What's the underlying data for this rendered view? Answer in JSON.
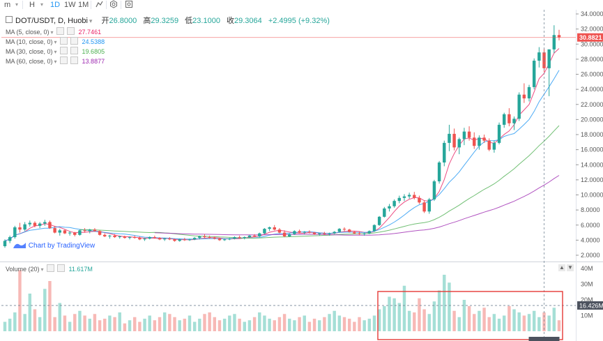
{
  "toolbar": {
    "items": [
      "m",
      "H",
      "1D",
      "1W",
      "1M"
    ],
    "active": "1D",
    "icons": [
      "compare-icon",
      "indicator-icon",
      "settings-icon",
      "screenshot-icon"
    ]
  },
  "legend": {
    "symbol": "DOT/USDT, D, Huobi",
    "open_label": "开",
    "open": "26.8000",
    "high_label": "高",
    "high": "29.3259",
    "low_label": "低",
    "low": "23.1000",
    "close_label": "收",
    "close": "29.3064",
    "change": "+2.4995 (+9.32%)",
    "ma": [
      {
        "label": "MA (5, close, 0)",
        "value": "27.7461",
        "color": "#e91e63"
      },
      {
        "label": "MA (10, close, 0)",
        "value": "24.5388",
        "color": "#2196f3"
      },
      {
        "label": "MA (30, close, 0)",
        "value": "19.6805",
        "color": "#4caf50"
      },
      {
        "label": "MA (60, close, 0)",
        "value": "13.8877",
        "color": "#9c27b0"
      }
    ],
    "volume_label": "Volume (20)",
    "volume_value": "11.617M"
  },
  "watermark": "Chart by TradingView",
  "price_axis": {
    "ticks": [
      "2.0000",
      "4.0000",
      "6.0000",
      "8.0000",
      "10.0000",
      "12.0000",
      "14.0000",
      "16.0000",
      "18.0000",
      "20.0000",
      "22.0000",
      "24.0000",
      "26.0000",
      "28.0000",
      "30.0000",
      "32.0000",
      "34.0000"
    ],
    "last_price": "30.8821"
  },
  "volume_axis": {
    "ticks": [
      "10M",
      "20M",
      "30M",
      "40M"
    ],
    "crosshair_value": "16.426M"
  },
  "colors": {
    "up": "#26a69a",
    "down": "#ef5350",
    "up_vol": "#a5dfd6",
    "down_vol": "#f7b9b6",
    "highlight": "#e53935"
  },
  "chart_data": {
    "type": "candlestick",
    "price_range": [
      2,
      34
    ],
    "volume_range_millions": [
      0,
      40
    ],
    "candles": [
      [
        3.2,
        4.1,
        3.0,
        3.9
      ],
      [
        3.9,
        4.6,
        3.6,
        4.4
      ],
      [
        4.4,
        5.9,
        4.2,
        5.7
      ],
      [
        5.7,
        6.3,
        5.0,
        5.4
      ],
      [
        5.4,
        6.4,
        5.2,
        6.1
      ],
      [
        6.1,
        6.6,
        5.8,
        6.3
      ],
      [
        6.3,
        6.5,
        5.7,
        5.9
      ],
      [
        5.9,
        6.4,
        5.6,
        6.2
      ],
      [
        6.2,
        6.7,
        5.9,
        6.4
      ],
      [
        6.4,
        6.6,
        5.5,
        5.6
      ],
      [
        5.6,
        5.9,
        4.9,
        5.0
      ],
      [
        5.0,
        5.5,
        4.6,
        5.3
      ],
      [
        5.3,
        5.4,
        4.8,
        4.9
      ],
      [
        4.9,
        5.2,
        4.6,
        5.0
      ],
      [
        5.0,
        5.1,
        4.5,
        4.7
      ],
      [
        4.7,
        5.4,
        4.6,
        5.3
      ],
      [
        5.3,
        5.6,
        5.0,
        5.2
      ],
      [
        5.2,
        5.5,
        4.9,
        5.4
      ],
      [
        5.4,
        5.6,
        5.1,
        5.2
      ],
      [
        5.2,
        5.3,
        4.6,
        4.7
      ],
      [
        4.7,
        4.9,
        4.4,
        4.5
      ],
      [
        4.5,
        4.7,
        4.2,
        4.6
      ],
      [
        4.6,
        4.8,
        4.3,
        4.4
      ],
      [
        4.4,
        4.6,
        4.2,
        4.5
      ],
      [
        4.5,
        4.6,
        4.2,
        4.3
      ],
      [
        4.3,
        4.5,
        4.1,
        4.4
      ],
      [
        4.4,
        4.6,
        4.2,
        4.3
      ],
      [
        4.3,
        4.5,
        4.0,
        4.1
      ],
      [
        4.1,
        4.3,
        3.9,
        4.2
      ],
      [
        4.2,
        4.5,
        4.1,
        4.4
      ],
      [
        4.4,
        4.6,
        4.2,
        4.3
      ],
      [
        4.3,
        4.4,
        4.0,
        4.1
      ],
      [
        4.1,
        4.3,
        3.9,
        4.2
      ],
      [
        4.2,
        4.4,
        4.0,
        4.1
      ],
      [
        4.1,
        4.2,
        3.8,
        3.9
      ],
      [
        3.9,
        4.2,
        3.8,
        4.1
      ],
      [
        4.1,
        4.3,
        3.9,
        4.0
      ],
      [
        4.0,
        4.2,
        3.9,
        4.1
      ],
      [
        4.1,
        4.4,
        4.0,
        4.3
      ],
      [
        4.3,
        4.6,
        4.1,
        4.5
      ],
      [
        4.5,
        4.8,
        4.3,
        4.4
      ],
      [
        4.4,
        4.6,
        4.2,
        4.3
      ],
      [
        4.3,
        4.5,
        4.1,
        4.2
      ],
      [
        4.2,
        4.3,
        3.9,
        4.0
      ],
      [
        4.0,
        4.2,
        3.9,
        4.1
      ],
      [
        4.1,
        4.3,
        4.0,
        4.2
      ],
      [
        4.2,
        4.5,
        4.1,
        4.4
      ],
      [
        4.4,
        4.6,
        4.2,
        4.3
      ],
      [
        4.3,
        4.5,
        4.1,
        4.4
      ],
      [
        4.4,
        4.7,
        4.3,
        4.6
      ],
      [
        4.6,
        4.8,
        4.4,
        4.5
      ],
      [
        4.5,
        5.0,
        4.4,
        4.9
      ],
      [
        4.9,
        5.6,
        4.8,
        5.5
      ],
      [
        5.5,
        5.8,
        5.2,
        5.7
      ],
      [
        5.7,
        6.0,
        5.3,
        5.4
      ],
      [
        5.4,
        5.6,
        4.9,
        5.0
      ],
      [
        5.0,
        5.3,
        4.4,
        4.5
      ],
      [
        4.5,
        4.9,
        4.4,
        4.8
      ],
      [
        4.8,
        5.3,
        4.7,
        5.2
      ],
      [
        5.2,
        5.4,
        4.9,
        5.0
      ],
      [
        5.0,
        5.2,
        4.8,
        5.1
      ],
      [
        5.1,
        5.3,
        4.9,
        5.0
      ],
      [
        5.0,
        5.1,
        4.7,
        4.8
      ],
      [
        4.8,
        5.0,
        4.6,
        4.9
      ],
      [
        4.9,
        5.1,
        4.7,
        4.8
      ],
      [
        4.8,
        5.0,
        4.6,
        4.9
      ],
      [
        4.9,
        5.2,
        4.8,
        5.1
      ],
      [
        5.1,
        5.6,
        5.0,
        5.5
      ],
      [
        5.5,
        5.7,
        5.2,
        5.4
      ],
      [
        5.4,
        5.5,
        5.0,
        5.1
      ],
      [
        5.1,
        5.2,
        4.8,
        4.9
      ],
      [
        4.9,
        5.1,
        4.7,
        4.8
      ],
      [
        4.8,
        5.0,
        4.6,
        4.9
      ],
      [
        4.9,
        5.3,
        4.8,
        5.2
      ],
      [
        5.2,
        6.1,
        5.1,
        6.0
      ],
      [
        6.0,
        7.2,
        5.9,
        7.1
      ],
      [
        7.1,
        8.4,
        7.0,
        8.2
      ],
      [
        8.2,
        8.8,
        7.8,
        8.5
      ],
      [
        8.5,
        9.4,
        8.3,
        9.2
      ],
      [
        9.2,
        9.9,
        8.9,
        9.6
      ],
      [
        9.6,
        10.1,
        9.2,
        9.8
      ],
      [
        9.8,
        10.3,
        9.5,
        10.0
      ],
      [
        10.0,
        10.4,
        9.4,
        9.6
      ],
      [
        9.6,
        9.9,
        8.8,
        9.0
      ],
      [
        9.0,
        9.3,
        7.6,
        7.8
      ],
      [
        7.8,
        9.6,
        7.5,
        9.4
      ],
      [
        9.4,
        12.0,
        9.2,
        11.8
      ],
      [
        11.8,
        14.5,
        11.5,
        14.3
      ],
      [
        14.3,
        17.2,
        13.8,
        16.9
      ],
      [
        16.9,
        19.3,
        15.8,
        18.1
      ],
      [
        18.1,
        18.8,
        15.9,
        16.3
      ],
      [
        16.3,
        17.6,
        15.4,
        17.4
      ],
      [
        17.4,
        18.9,
        16.6,
        18.4
      ],
      [
        18.4,
        19.1,
        17.2,
        17.6
      ],
      [
        17.6,
        18.3,
        16.1,
        16.5
      ],
      [
        16.5,
        17.9,
        16.0,
        17.6
      ],
      [
        17.6,
        18.0,
        16.9,
        17.2
      ],
      [
        17.2,
        17.5,
        15.8,
        16.0
      ],
      [
        16.0,
        17.2,
        15.6,
        16.9
      ],
      [
        16.9,
        19.6,
        16.7,
        19.3
      ],
      [
        19.3,
        20.9,
        18.9,
        20.7
      ],
      [
        20.7,
        21.5,
        19.1,
        19.5
      ],
      [
        19.5,
        20.4,
        18.6,
        20.1
      ],
      [
        20.1,
        23.6,
        19.8,
        23.3
      ],
      [
        23.3,
        24.8,
        22.2,
        22.8
      ],
      [
        22.8,
        24.6,
        22.4,
        24.3
      ],
      [
        24.3,
        28.1,
        24.0,
        27.8
      ],
      [
        27.8,
        29.6,
        26.9,
        28.9
      ],
      [
        28.9,
        29.4,
        26.3,
        26.8
      ],
      [
        26.8,
        29.3,
        23.1,
        29.3
      ],
      [
        29.3,
        32.5,
        28.8,
        31.2
      ],
      [
        31.2,
        31.9,
        30.5,
        30.9
      ]
    ],
    "volume_millions": [
      6,
      8,
      12,
      39,
      11,
      24,
      14,
      9,
      27,
      32,
      9,
      18,
      10,
      6,
      11,
      13,
      10,
      8,
      11,
      7,
      8,
      10,
      9,
      12,
      5,
      7,
      9,
      6,
      8,
      10,
      7,
      9,
      12,
      11,
      9,
      7,
      8,
      10,
      6,
      8,
      11,
      12,
      9,
      7,
      8,
      10,
      11,
      8,
      6,
      7,
      9,
      12,
      10,
      8,
      7,
      9,
      11,
      8,
      7,
      9,
      10,
      6,
      8,
      7,
      9,
      11,
      13,
      10,
      9,
      8,
      6,
      9,
      7,
      8,
      10,
      14,
      16,
      22,
      21,
      18,
      29,
      13,
      12,
      21,
      14,
      11,
      19,
      26,
      36,
      31,
      13,
      9,
      20,
      16,
      11,
      13,
      15,
      9,
      11,
      8,
      10,
      16,
      14,
      12,
      10,
      11,
      13,
      9,
      12,
      10,
      15,
      7
    ]
  }
}
